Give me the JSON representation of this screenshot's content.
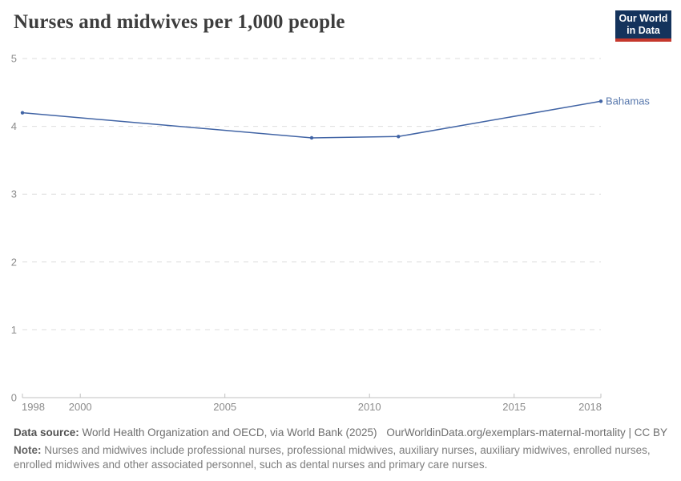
{
  "header": {
    "title": "Nurses and midwives per 1,000 people",
    "logo": {
      "line1": "Our World",
      "line2": "in Data",
      "bg_color": "#14335c",
      "bar_color": "#c5372c"
    }
  },
  "chart_data": {
    "type": "line",
    "title": "Nurses and midwives per 1,000 people",
    "xlabel": "",
    "ylabel": "",
    "xlim": [
      1998,
      2018
    ],
    "ylim": [
      0,
      5
    ],
    "x_ticks": [
      1998,
      2000,
      2005,
      2010,
      2015,
      2018
    ],
    "y_ticks": [
      0,
      1,
      2,
      3,
      4,
      5
    ],
    "grid": "horizontal-dashed",
    "legend_position": "end-of-line-label",
    "colors": {
      "gridline": "#dedede",
      "axis": "#c0c0c0",
      "tick_label": "#8c8c8c"
    },
    "series": [
      {
        "name": "Bahamas",
        "color": "#4164a5",
        "label_color": "#5878ad",
        "x": [
          1998,
          2008,
          2011,
          2018
        ],
        "values": [
          4.2,
          3.83,
          3.85,
          4.37
        ]
      }
    ]
  },
  "footer": {
    "source_label": "Data source:",
    "source_text": "World Health Organization and OECD, via World Bank (2025)",
    "attribution": "OurWorldinData.org/exemplars-maternal-mortality | CC BY",
    "note_label": "Note:",
    "note_text": "Nurses and midwives include professional nurses, professional midwives, auxiliary nurses, auxiliary midwives, enrolled nurses, enrolled midwives and other associated personnel, such as dental nurses and primary care nurses."
  }
}
